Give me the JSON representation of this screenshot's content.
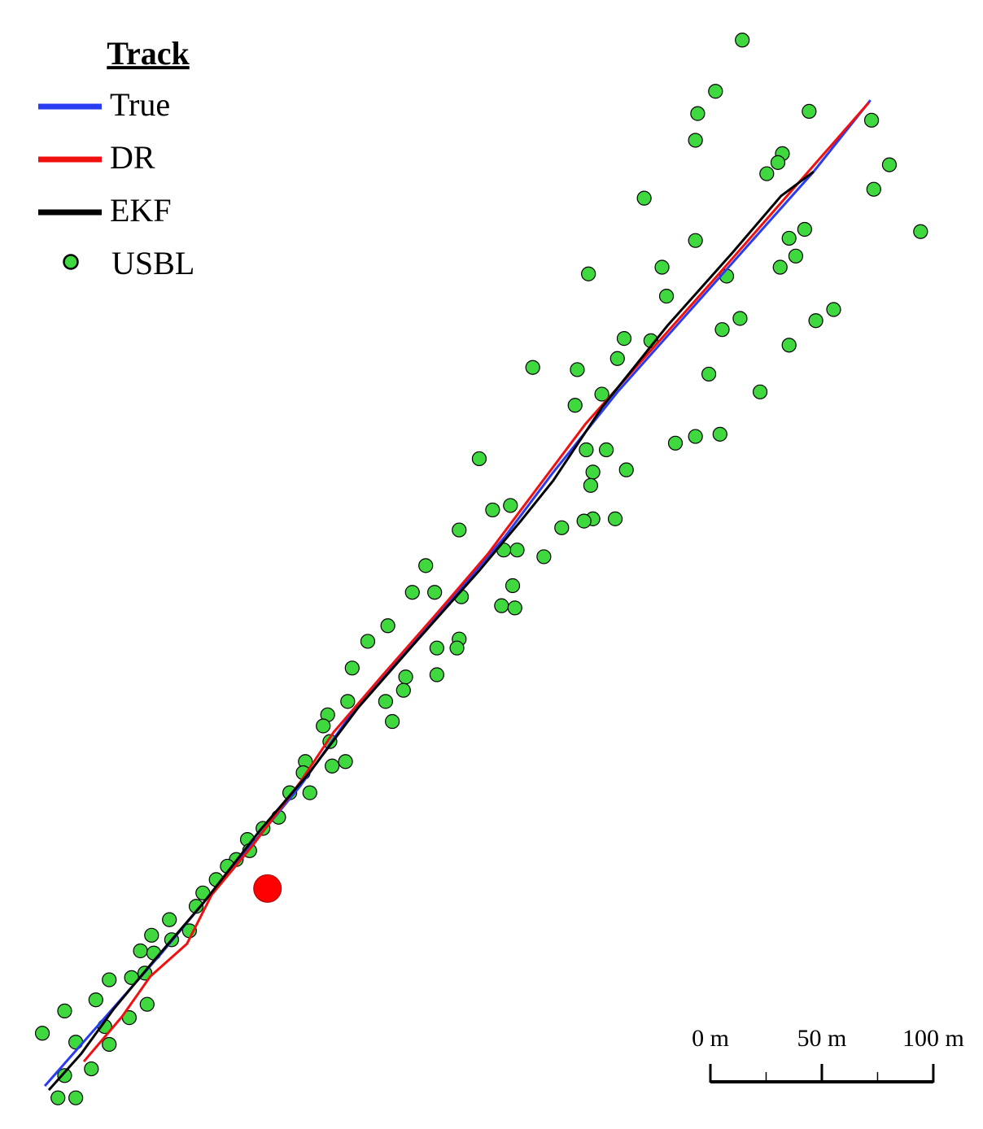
{
  "chart_data": {
    "type": "map",
    "legend_title": "Track",
    "legend": "top-left",
    "xlim": [
      0,
      441
    ],
    "ylim": [
      0,
      507
    ],
    "series": [
      {
        "name": "True",
        "type": "line",
        "color": "#2a3cf0",
        "x": [
          20.1,
          47.4,
          73.0,
          91.2,
          109.5,
          135.0,
          156.9,
          182.5,
          204.4,
          226.3,
          248.2,
          277.4,
          306.6,
          335.8,
          365.0,
          390.5
        ],
        "y": [
          19.3,
          50.4,
          79.6,
          101.5,
          123.4,
          154.4,
          185.4,
          214.6,
          240.1,
          265.7,
          294.9,
          331.4,
          364.2,
          397.1,
          429.9,
          462.0
        ]
      },
      {
        "name": "DR",
        "type": "line",
        "color": "#f01010",
        "x": [
          37.6,
          54.7,
          67.5,
          83.9,
          94.9,
          113.1,
          135.0,
          149.6,
          171.5,
          197.1,
          219.0,
          240.9,
          262.8,
          292.0,
          321.2,
          346.7,
          389.8
        ],
        "y": [
          30.3,
          50.4,
          68.6,
          83.2,
          105.1,
          127.0,
          156.2,
          178.1,
          203.6,
          232.8,
          258.4,
          287.6,
          316.8,
          349.6,
          382.5,
          411.7,
          461.0
        ]
      },
      {
        "name": "EKF",
        "type": "line",
        "color": "#000000",
        "x": [
          21.9,
          36.5,
          51.1,
          69.3,
          91.2,
          116.8,
          138.7,
          160.6,
          186.1,
          215.3,
          233.6,
          248.2,
          270.1,
          299.3,
          328.5,
          350.4,
          365.0
        ],
        "y": [
          17.5,
          33.9,
          54.0,
          75.9,
          101.5,
          134.3,
          159.9,
          189.1,
          218.2,
          251.1,
          273.0,
          291.2,
          324.1,
          360.6,
          393.4,
          419.0,
          429.9
        ]
      },
      {
        "name": "USBL",
        "type": "scatter",
        "color": "#3fd83f",
        "x": [
          333,
          321,
          313,
          363,
          312,
          391,
          351,
          349,
          344,
          399,
          392,
          289,
          413,
          312,
          354,
          361,
          264,
          297,
          357,
          350,
          326,
          299,
          374,
          366,
          332,
          324,
          280,
          292,
          354,
          277,
          239,
          259,
          318,
          270,
          258,
          341,
          323,
          312,
          303,
          263,
          272,
          215,
          281,
          266,
          265,
          221,
          229,
          206,
          252,
          266,
          262,
          276,
          232,
          244,
          226,
          191,
          185,
          195,
          230,
          225,
          231,
          207,
          174,
          165,
          206,
          196,
          205,
          158,
          196,
          182,
          181,
          173,
          156,
          147,
          176,
          145,
          148,
          137,
          155,
          149,
          136,
          139,
          130,
          125,
          118,
          111,
          112,
          106,
          102,
          97,
          91,
          88,
          76,
          85,
          68,
          77,
          63,
          69,
          65,
          49,
          59,
          43,
          66,
          29,
          58,
          47,
          19,
          34,
          49,
          41,
          29,
          26,
          34
        ],
        "y": [
          489,
          466,
          456,
          457,
          444,
          453,
          438,
          434,
          429,
          433,
          422,
          418,
          403,
          399,
          400,
          404,
          384,
          387,
          392,
          387,
          383,
          374,
          368,
          363,
          364,
          359,
          355,
          354,
          352,
          346,
          342,
          341,
          339,
          330,
          325,
          331,
          312,
          311,
          308,
          305,
          305,
          301,
          296,
          295,
          289,
          278,
          280,
          269,
          270,
          274,
          273,
          274,
          260,
          257,
          260,
          253,
          241,
          241,
          244,
          235,
          234,
          239,
          226,
          219,
          220,
          216,
          216,
          207,
          204,
          203,
          197,
          192,
          192,
          186,
          183,
          181,
          174,
          165,
          165,
          163,
          160,
          151,
          151,
          140,
          135,
          130,
          125,
          121,
          118,
          112,
          106,
          100,
          94,
          89,
          87,
          85,
          80,
          79,
          70,
          67,
          68,
          58,
          56,
          53,
          50,
          46,
          43,
          39,
          38,
          27,
          24,
          14,
          14
        ]
      }
    ],
    "marker": {
      "x": 120,
      "y": 108,
      "color": "#ff0000"
    },
    "scale_bar": {
      "ticks": [
        {
          "value": 0,
          "label": "0 m"
        },
        {
          "value": 50,
          "label": "50 m"
        },
        {
          "value": 100,
          "label": "100 m"
        }
      ],
      "minor_ticks": [
        25,
        75
      ]
    }
  }
}
